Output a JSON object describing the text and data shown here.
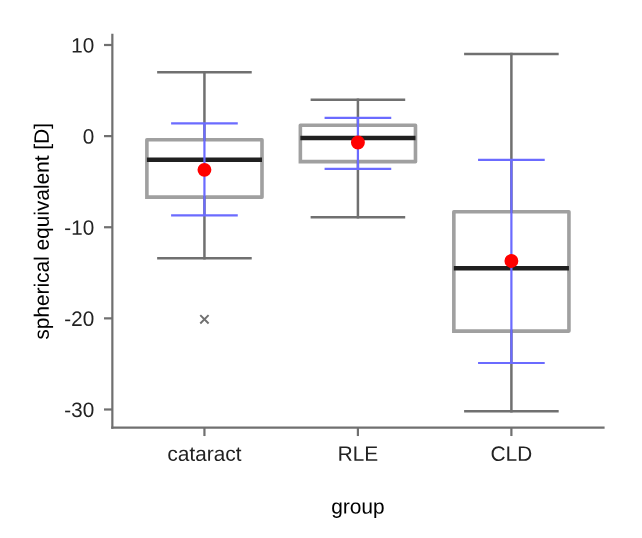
{
  "chart_data": {
    "type": "box",
    "xlabel": "group",
    "ylabel": "spherical equivalent [D]",
    "categories": [
      "cataract",
      "RLE",
      "CLD"
    ],
    "ylim": [
      -32,
      11.1
    ],
    "yticks": [
      -30,
      -20,
      -10,
      0,
      10
    ],
    "grid": false,
    "legend": false,
    "series": [
      {
        "color": "#a0a0a0",
        "boxes": [
          {
            "low": -13.4,
            "q1": -6.7,
            "median": -2.6,
            "q3": -0.4,
            "high": 7.0,
            "outliers": [
              -20.1
            ]
          },
          {
            "low": -8.9,
            "q1": -2.8,
            "median": -0.2,
            "q3": 1.2,
            "high": 4.0
          },
          {
            "low": -30.2,
            "q1": -21.4,
            "median": -14.5,
            "q3": -8.3,
            "high": 9.0
          }
        ]
      },
      {
        "type": "scatter",
        "color": "#ff0000",
        "x": [
          "cataract",
          "RLE",
          "CLD"
        ],
        "values": [
          -3.7,
          -0.7,
          -13.7
        ],
        "errors": [
          [
            -8.7,
            1.4
          ],
          [
            -3.6,
            2.0
          ],
          [
            -24.9,
            -2.6
          ]
        ],
        "marker": "circle"
      }
    ]
  }
}
